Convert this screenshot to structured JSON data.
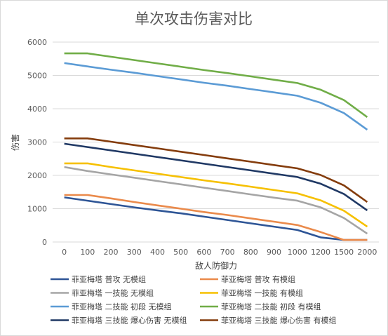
{
  "chart_data": {
    "type": "line",
    "title": "单次攻击伤害对比",
    "xlabel": "敌人防御力",
    "ylabel": "伤害",
    "x": [
      0,
      100,
      200,
      300,
      400,
      500,
      600,
      700,
      800,
      900,
      1000,
      1200,
      1500,
      2000
    ],
    "x_tick_labels": [
      "0",
      "100",
      "200",
      "300",
      "400",
      "500",
      "600",
      "700",
      "800",
      "900",
      "1000",
      "1200",
      "1500",
      "2000"
    ],
    "ylim": [
      0,
      6000
    ],
    "y_ticks": [
      0,
      1000,
      2000,
      3000,
      4000,
      5000,
      6000
    ],
    "y_tick_labels": [
      "0",
      "1000",
      "2000",
      "3000",
      "4000",
      "5000",
      "6000"
    ],
    "grid": true,
    "legend_position": "bottom",
    "series": [
      {
        "name": "菲亚梅塔 普攻 无模组",
        "color": "#2e5596",
        "values": [
          1340,
          1240,
          1140,
          1040,
          950,
          860,
          760,
          660,
          560,
          460,
          360,
          140,
          60,
          60
        ]
      },
      {
        "name": "菲亚梅塔 普攻 有模组",
        "color": "#ea8a4b",
        "values": [
          1410,
          1410,
          1310,
          1200,
          1100,
          1000,
          900,
          810,
          710,
          610,
          510,
          300,
          60,
          60
        ]
      },
      {
        "name": "菲亚梅塔 一技能 无模组",
        "color": "#a5a5a5",
        "values": [
          2250,
          2130,
          2030,
          1930,
          1830,
          1730,
          1630,
          1530,
          1430,
          1330,
          1240,
          1040,
          720,
          250
        ]
      },
      {
        "name": "菲亚梅塔 一技能 有模组",
        "color": "#f6c000",
        "values": [
          2360,
          2360,
          2250,
          2150,
          2050,
          1950,
          1850,
          1760,
          1660,
          1560,
          1460,
          1250,
          940,
          460
        ]
      },
      {
        "name": "菲亚梅塔 二技能 初段 无模组",
        "color": "#5b9bd5",
        "values": [
          5370,
          5270,
          5170,
          5080,
          4980,
          4880,
          4780,
          4690,
          4590,
          4490,
          4390,
          4180,
          3870,
          3370
        ]
      },
      {
        "name": "菲亚梅塔 二技能 初段 有模组",
        "color": "#70ad47",
        "values": [
          5660,
          5660,
          5560,
          5460,
          5360,
          5260,
          5160,
          5070,
          4970,
          4870,
          4770,
          4570,
          4260,
          3750
        ]
      },
      {
        "name": "菲亚梅塔 三技能 爆心伤害 无模组",
        "color": "#1f3864",
        "values": [
          2950,
          2850,
          2750,
          2650,
          2550,
          2450,
          2350,
          2250,
          2150,
          2050,
          1950,
          1750,
          1440,
          950
        ]
      },
      {
        "name": "菲亚梅塔 三技能 爆心伤害 有模组",
        "color": "#843c0c",
        "values": [
          3110,
          3110,
          3010,
          2910,
          2810,
          2710,
          2610,
          2510,
          2410,
          2310,
          2210,
          2010,
          1700,
          1200
        ]
      }
    ]
  }
}
